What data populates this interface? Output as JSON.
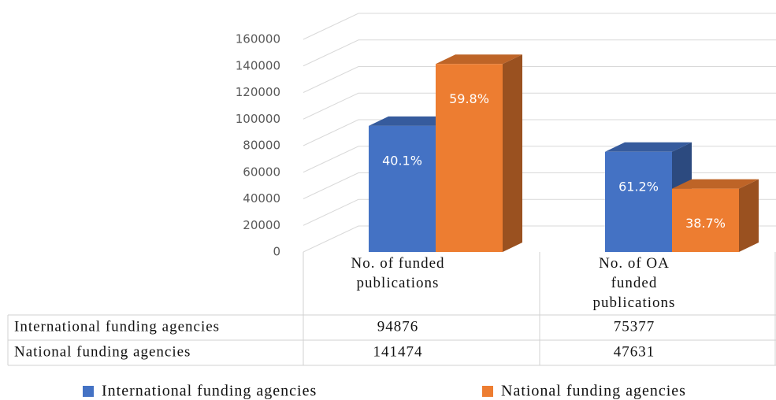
{
  "chart_data": {
    "type": "bar3d",
    "categories": [
      "No. of funded publications",
      "No. of OA funded publications"
    ],
    "series": [
      {
        "name": "International funding agencies",
        "color": "#4472c4",
        "values": [
          94876,
          75377
        ],
        "annotations": [
          "40.1%",
          "61.2%"
        ]
      },
      {
        "name": "National funding agencies",
        "color": "#ed7d31",
        "values": [
          141474,
          47631
        ],
        "annotations": [
          "59.8%",
          "38.7%"
        ]
      }
    ],
    "ylim": [
      0,
      160000
    ],
    "yticks": [
      0,
      20000,
      40000,
      60000,
      80000,
      100000,
      120000,
      140000,
      160000
    ],
    "grid": true,
    "data_table": true,
    "legend": "bottom"
  }
}
